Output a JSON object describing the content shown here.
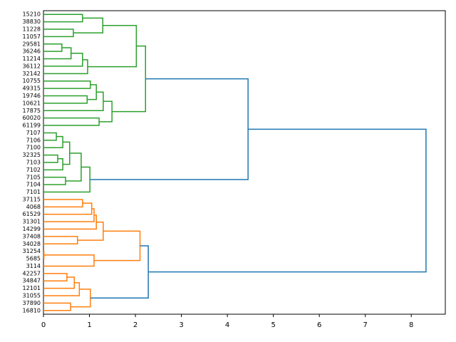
{
  "chart_data": {
    "type": "dendrogram",
    "xlim": [
      0,
      8.74
    ],
    "xticks": [
      0,
      1,
      2,
      3,
      4,
      5,
      6,
      7,
      8
    ],
    "tree": {
      "height": 8.32,
      "color": "#1f77b4",
      "children": [
        {
          "height": 4.45,
          "color": "#2ca02c",
          "children": [
            {
              "height": 2.22,
              "children": [
                {
                  "height": 2.02,
                  "children": [
                    {
                      "height": 1.29,
                      "children": [
                        {
                          "height": 0.85,
                          "children": [
                            "15210",
                            "38830"
                          ]
                        },
                        {
                          "height": 0.65,
                          "children": [
                            "11228",
                            "11057"
                          ]
                        }
                      ]
                    },
                    {
                      "height": 0.96,
                      "children": [
                        {
                          "height": 0.85,
                          "children": [
                            {
                              "height": 0.6,
                              "children": [
                                {
                                  "height": 0.4,
                                  "children": [
                                    "29581",
                                    "36246"
                                  ]
                                },
                                "11214"
                              ]
                            },
                            "36112"
                          ]
                        },
                        "32142"
                      ]
                    }
                  ]
                },
                {
                  "height": 1.49,
                  "children": [
                    {
                      "height": 1.3,
                      "children": [
                        {
                          "height": 1.15,
                          "children": [
                            {
                              "height": 1.02,
                              "children": [
                                "10755",
                                "49315"
                              ]
                            },
                            {
                              "height": 0.95,
                              "children": [
                                "19746",
                                "10621"
                              ]
                            }
                          ]
                        },
                        "17875"
                      ]
                    },
                    {
                      "height": 1.21,
                      "children": [
                        "60020",
                        "61199"
                      ]
                    }
                  ]
                }
              ]
            },
            {
              "height": 1.01,
              "children": [
                {
                  "height": 0.82,
                  "children": [
                    {
                      "height": 0.57,
                      "children": [
                        {
                          "height": 0.42,
                          "children": [
                            {
                              "height": 0.28,
                              "children": [
                                "7107",
                                "7106"
                              ]
                            },
                            "7100"
                          ]
                        },
                        {
                          "height": 0.42,
                          "children": [
                            {
                              "height": 0.31,
                              "children": [
                                "32325",
                                "7103"
                              ]
                            },
                            "7102"
                          ]
                        }
                      ]
                    },
                    {
                      "height": 0.48,
                      "children": [
                        "7105",
                        "7104"
                      ]
                    }
                  ]
                },
                "7101"
              ]
            }
          ]
        },
        {
          "height": 2.28,
          "color": "#ff7f0e",
          "children": [
            {
              "height": 2.1,
              "children": [
                {
                  "height": 1.3,
                  "children": [
                    {
                      "height": 1.15,
                      "children": [
                        {
                          "height": 1.1,
                          "children": [
                            {
                              "height": 1.05,
                              "children": [
                                {
                                  "height": 0.85,
                                  "children": [
                                    "37115",
                                    "4068"
                                  ]
                                },
                                "61529"
                              ]
                            },
                            "31301"
                          ]
                        },
                        "14299"
                      ]
                    },
                    {
                      "height": 0.74,
                      "children": [
                        "37408",
                        "34028"
                      ]
                    }
                  ]
                },
                {
                  "height": 1.1,
                  "children": [
                    {
                      "height": 0.01,
                      "children": [
                        "31254",
                        "5685"
                      ]
                    },
                    "3114"
                  ]
                }
              ]
            },
            {
              "height": 1.02,
              "children": [
                {
                  "height": 0.78,
                  "children": [
                    {
                      "height": 0.67,
                      "children": [
                        {
                          "height": 0.51,
                          "children": [
                            "42257",
                            "34847"
                          ]
                        },
                        "12101"
                      ]
                    },
                    "31055"
                  ]
                },
                {
                  "height": 0.59,
                  "children": [
                    "37890",
                    "16810"
                  ]
                }
              ]
            }
          ]
        }
      ]
    }
  }
}
